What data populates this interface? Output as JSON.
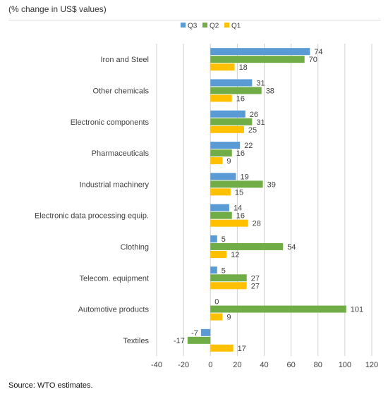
{
  "header": {
    "subtitle": "(% change in US$ values)"
  },
  "footer": {
    "source": "Source: WTO estimates."
  },
  "colors": {
    "Q3": "#5b9bd5",
    "Q2": "#70ad47",
    "Q1": "#ffc000",
    "grid": "#d0d0d0",
    "text": "#404040"
  },
  "chart_data": {
    "type": "bar",
    "orientation": "horizontal",
    "categories": [
      "Iron and Steel",
      "Other chemicals",
      "Electronic components",
      "Pharmaceuticals",
      "Industrial machinery",
      "Electronic data processing equip.",
      "Clothing",
      "Telecom. equipment",
      "Automotive products",
      "Textiles"
    ],
    "series": [
      {
        "name": "Q3",
        "values": [
          74,
          31,
          26,
          22,
          19,
          14,
          5,
          5,
          0,
          -7
        ]
      },
      {
        "name": "Q2",
        "values": [
          70,
          38,
          31,
          16,
          39,
          16,
          54,
          27,
          101,
          -17
        ]
      },
      {
        "name": "Q1",
        "values": [
          18,
          16,
          25,
          9,
          15,
          28,
          12,
          27,
          9,
          17
        ]
      }
    ],
    "xlim": [
      -40,
      120
    ],
    "xticks": [
      -40,
      -20,
      0,
      20,
      40,
      60,
      80,
      100,
      120
    ],
    "grid": "vertical",
    "legend_position": "top",
    "data_labels": true
  }
}
